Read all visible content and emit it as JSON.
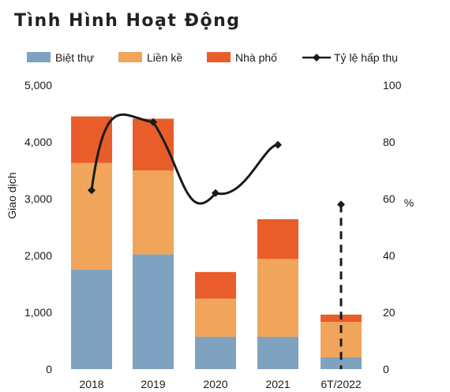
{
  "title": "Tình Hình Hoạt Động",
  "chart_data": {
    "type": "bar",
    "stacked": true,
    "categories": [
      "2018",
      "2019",
      "2020",
      "2021",
      "6T/2022"
    ],
    "series": [
      {
        "name": "Biệt thự",
        "color": "#7fa2c0",
        "values": [
          1750,
          2020,
          570,
          570,
          210
        ]
      },
      {
        "name": "Liền kề",
        "color": "#f0a55a",
        "values": [
          1880,
          1480,
          670,
          1370,
          620
        ]
      },
      {
        "name": "Nhà phố",
        "color": "#e85d2a",
        "values": [
          820,
          910,
          470,
          700,
          130
        ]
      }
    ],
    "line_series": {
      "name": "Tỷ lệ hấp thụ",
      "color": "#1a1a1a",
      "axis": "right",
      "values": [
        63,
        87,
        62,
        79,
        58
      ],
      "dashed_segment_category": "6T/2022"
    },
    "ylabel_left": "Giao dịch",
    "ylabel_right": "%",
    "ylim_left": [
      0,
      5000
    ],
    "ylim_right": [
      0,
      100
    ],
    "yticks_left": [
      "0",
      "1,000",
      "2,000",
      "3,000",
      "4,000",
      "5,000"
    ],
    "yticks_right": [
      "0",
      "20",
      "40",
      "60",
      "80",
      "100"
    ],
    "grid": false,
    "legend_position": "top"
  }
}
